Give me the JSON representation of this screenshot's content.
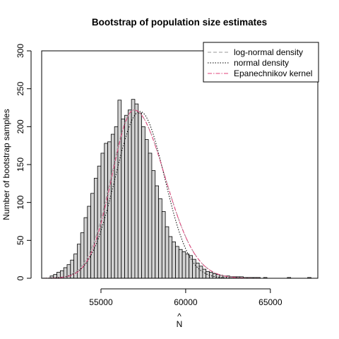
{
  "chart_data": {
    "type": "bar",
    "title": "Bootstrap of population size estimates",
    "xlabel": "N",
    "xlabel_hat": "^",
    "ylabel": "Number of bootstrap samples",
    "xlim": [
      51500,
      67800
    ],
    "ylim": [
      0,
      300
    ],
    "x_ticks": [
      55000,
      60000,
      65000
    ],
    "x_tick_labels": [
      "55000",
      "60000",
      "65000"
    ],
    "y_ticks": [
      0,
      50,
      100,
      150,
      200,
      250,
      300
    ],
    "y_tick_labels": [
      "0",
      "50",
      "100",
      "150",
      "200",
      "250",
      "300"
    ],
    "grid": false,
    "legend_position": "top-right",
    "colors": {
      "bar_fill": "#d3d3d3",
      "bar_stroke": "#000000",
      "lognormal": "#9a9a9a",
      "normal": "#000000",
      "epanechnikov": "#e0427a"
    },
    "bins": {
      "start": 52000,
      "width": 200,
      "counts": [
        3,
        5,
        8,
        10,
        14,
        18,
        24,
        32,
        45,
        60,
        80,
        95,
        112,
        132,
        148,
        165,
        178,
        180,
        190,
        200,
        235,
        210,
        215,
        222,
        236,
        230,
        218,
        200,
        183,
        165,
        142,
        122,
        105,
        88,
        68,
        55,
        48,
        42,
        38,
        35,
        32,
        30,
        25,
        20,
        16,
        12,
        9,
        8,
        6,
        5,
        4,
        3,
        3,
        2,
        2,
        2,
        2,
        1,
        1,
        1,
        1,
        1,
        0,
        1,
        0,
        0,
        0,
        0,
        0,
        0,
        1,
        0,
        0,
        0,
        0,
        0,
        1
      ]
    },
    "series": [
      {
        "name": "log-normal density",
        "style": "dashed",
        "params": {
          "mean": 56950,
          "sd": 1350,
          "skew_right": 1.35
        }
      },
      {
        "name": "normal density",
        "style": "dotted",
        "params": {
          "mean": 57300,
          "sd": 1450,
          "peak": 220
        }
      },
      {
        "name": "Epanechnikov kernel",
        "style": "dashdot",
        "params": {
          "mean": 56950,
          "sd": 1300,
          "skew_right": 1.4
        }
      }
    ],
    "legend": [
      {
        "label": "log-normal density",
        "style": "dashed"
      },
      {
        "label": "normal density",
        "style": "dotted"
      },
      {
        "label": "Epanechnikov kernel",
        "style": "dashdot"
      }
    ]
  }
}
